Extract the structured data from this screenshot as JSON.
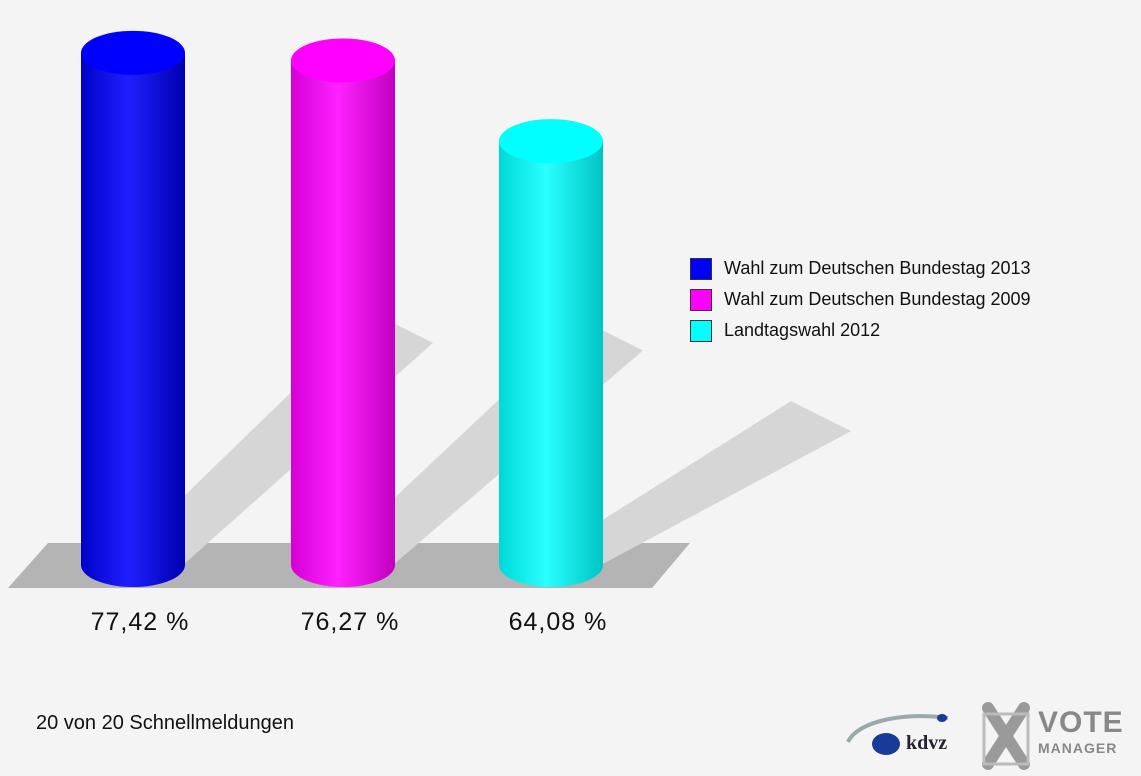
{
  "chart_data": {
    "type": "bar",
    "categories": [
      "Wahl zum Deutschen Bundestag 2013",
      "Wahl zum Deutschen Bundestag 2009",
      "Landtagswahl 2012"
    ],
    "values": [
      77.42,
      76.27,
      64.08
    ],
    "value_labels": [
      "77,42 %",
      "76,27 %",
      "64,08 %"
    ],
    "colors": [
      "#0000ff",
      "#ff00ff",
      "#00ffff"
    ],
    "ylim": [
      0,
      80
    ],
    "grid": false,
    "legend_position": "right"
  },
  "legend": {
    "items": [
      {
        "label": "Wahl zum Deutschen Bundestag 2013",
        "color": "#0000ff"
      },
      {
        "label": "Wahl zum Deutschen Bundestag 2009",
        "color": "#ff00ff"
      },
      {
        "label": "Landtagswahl 2012",
        "color": "#00ffff"
      }
    ]
  },
  "footer": {
    "status": "20 von 20 Schnellmeldungen"
  },
  "logos": {
    "kdvz": "kdvz",
    "vote": "VOTE",
    "manager": "MANAGER"
  }
}
